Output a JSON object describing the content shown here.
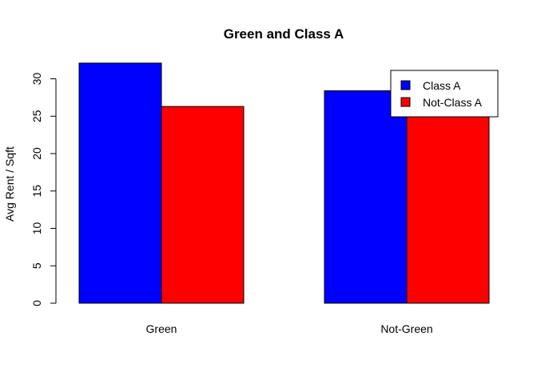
{
  "chart_data": {
    "type": "bar",
    "title": "Green and Class A",
    "xlabel": "",
    "ylabel": "Avg Rent / Sqft",
    "ylim": [
      0,
      33
    ],
    "yticks": [
      0,
      5,
      10,
      15,
      20,
      25,
      30
    ],
    "categories": [
      "Green",
      "Not-Green"
    ],
    "series": [
      {
        "name": "Class A",
        "color": "#0000ff",
        "values": [
          32.1,
          28.4
        ]
      },
      {
        "name": "Not-Class A",
        "color": "#ff0000",
        "values": [
          26.3,
          25.5
        ]
      }
    ],
    "legend_position": "top-right",
    "grid": false
  }
}
